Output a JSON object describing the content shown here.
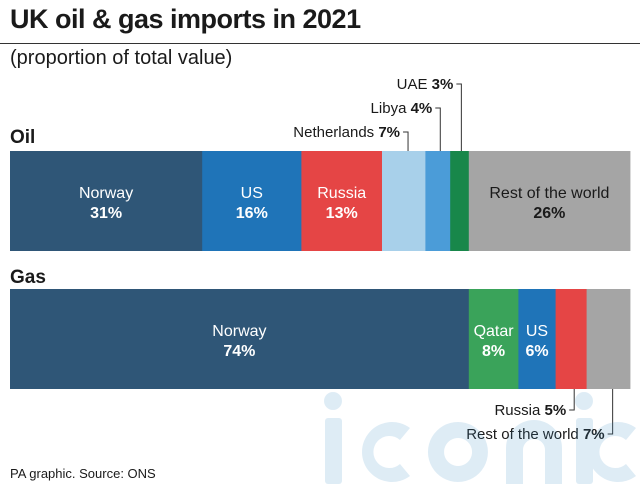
{
  "header": {
    "title": "UK oil & gas imports in 2021",
    "subtitle": "(proportion of total value)"
  },
  "footer": {
    "source": "PA graphic. Source: ONS"
  },
  "watermark": {
    "text": "iconic"
  },
  "chart_data": {
    "type": "bar",
    "orientation": "horizontal-stacked",
    "unit": "%",
    "groups": [
      {
        "name": "Oil",
        "segments": [
          {
            "label": "Norway",
            "value": 31,
            "display": "31%",
            "color": "#2f5677",
            "inside": true,
            "text_color": "#ffffff"
          },
          {
            "label": "US",
            "value": 16,
            "display": "16%",
            "color": "#1f74b8",
            "inside": true,
            "text_color": "#ffffff"
          },
          {
            "label": "Russia",
            "value": 13,
            "display": "13%",
            "color": "#e54545",
            "inside": true,
            "text_color": "#ffffff"
          },
          {
            "label": "Netherlands",
            "value": 7,
            "display": "7%",
            "color": "#a8d0ea",
            "inside": false,
            "callout": "above"
          },
          {
            "label": "Libya",
            "value": 4,
            "display": "4%",
            "color": "#4b9cd8",
            "inside": false,
            "callout": "above"
          },
          {
            "label": "UAE",
            "value": 3,
            "display": "3%",
            "color": "#18874a",
            "inside": false,
            "callout": "above"
          },
          {
            "label": "Rest of the world",
            "value": 26,
            "display": "26%",
            "color": "#a5a5a5",
            "inside": true,
            "text_color": "#1a1a1a"
          }
        ]
      },
      {
        "name": "Gas",
        "segments": [
          {
            "label": "Norway",
            "value": 74,
            "display": "74%",
            "color": "#2f5677",
            "inside": true,
            "text_color": "#ffffff"
          },
          {
            "label": "Qatar",
            "value": 8,
            "display": "8%",
            "color": "#3aa35a",
            "inside": true,
            "text_color": "#ffffff"
          },
          {
            "label": "US",
            "value": 6,
            "display": "6%",
            "color": "#1f74b8",
            "inside": true,
            "text_color": "#ffffff"
          },
          {
            "label": "Russia",
            "value": 5,
            "display": "5%",
            "color": "#e54545",
            "inside": false,
            "callout": "below"
          },
          {
            "label": "Rest of the world",
            "value": 7,
            "display": "7%",
            "color": "#a5a5a5",
            "inside": false,
            "callout": "below"
          }
        ]
      }
    ]
  }
}
